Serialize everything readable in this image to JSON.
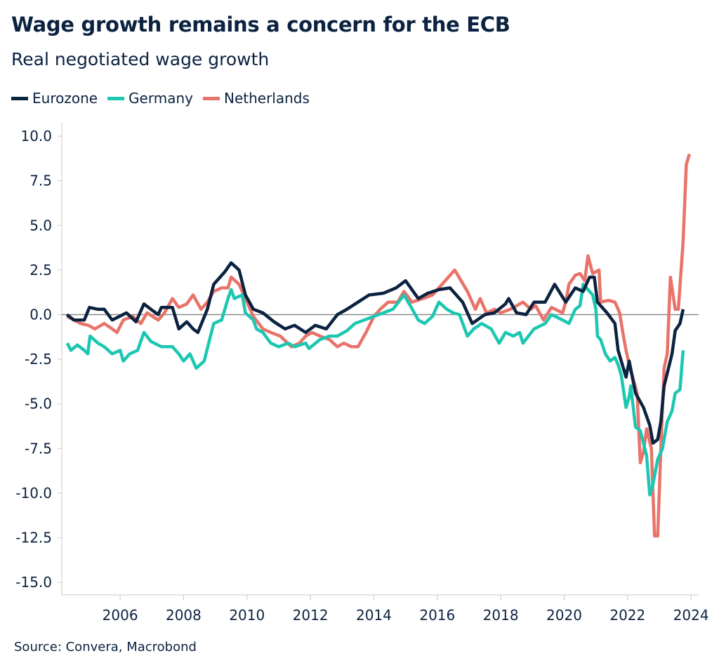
{
  "chart_data": {
    "type": "line",
    "title": "Wage growth remains a concern for the ECB",
    "subtitle": "Real negotiated wage growth",
    "source": "Source: Convera, Macrobond",
    "xlabel": "",
    "ylabel": "",
    "xlim": [
      2004.16,
      2024.24
    ],
    "ylim": [
      -15.7,
      10.75
    ],
    "x_ticks": [
      "2006",
      "2008",
      "2010",
      "2012",
      "2014",
      "2016",
      "2018",
      "2020",
      "2022",
      "2024"
    ],
    "y_ticks": [
      "10.0",
      "7.5",
      "5.0",
      "2.5",
      "0.0",
      "-2.5",
      "-5.0",
      "-7.5",
      "-10.0",
      "-12.5",
      "-15.0"
    ],
    "grid": false,
    "zero_line": true,
    "legend_position": "top-left",
    "series": [
      {
        "name": "Eurozone",
        "color": "#0b2240",
        "x": [
          2004.32,
          2004.54,
          2004.87,
          2005.03,
          2005.3,
          2005.5,
          2005.75,
          2006.2,
          2006.5,
          2006.75,
          2006.97,
          2007.2,
          2007.3,
          2007.65,
          2007.85,
          2008.1,
          2008.3,
          2008.45,
          2008.75,
          2008.95,
          2009.3,
          2009.5,
          2009.75,
          2009.95,
          2010.2,
          2010.5,
          2010.85,
          2011.2,
          2011.5,
          2011.85,
          2012.15,
          2012.5,
          2012.85,
          2013.15,
          2013.5,
          2013.85,
          2014.3,
          2014.7,
          2015.0,
          2015.4,
          2015.7,
          2016.05,
          2016.4,
          2016.8,
          2017.1,
          2017.5,
          2017.8,
          2018.15,
          2018.25,
          2018.5,
          2018.8,
          2019.05,
          2019.4,
          2019.7,
          2020.05,
          2020.35,
          2020.6,
          2020.8,
          2020.95,
          2021.05,
          2021.35,
          2021.6,
          2021.7,
          2021.9,
          2021.95,
          2022.05,
          2022.25,
          2022.5,
          2022.7,
          2022.8,
          2022.95,
          2023.05,
          2023.15,
          2023.4,
          2023.5,
          2023.65,
          2023.75
        ],
        "y": [
          0,
          -0.3,
          -0.3,
          0.4,
          0.3,
          0.3,
          -0.3,
          0.1,
          -0.4,
          0.6,
          0.3,
          0,
          0.4,
          0.4,
          -0.8,
          -0.4,
          -0.8,
          -1.0,
          0.3,
          1.7,
          2.4,
          2.9,
          2.5,
          1.1,
          0.3,
          0.1,
          -0.4,
          -0.8,
          -0.6,
          -1.0,
          -0.6,
          -0.8,
          0,
          0.3,
          0.7,
          1.1,
          1.2,
          1.5,
          1.9,
          0.9,
          1.2,
          1.4,
          1.5,
          0.7,
          -0.5,
          0,
          0.1,
          0.6,
          0.9,
          0.1,
          0,
          0.7,
          0.7,
          1.7,
          0.7,
          1.5,
          1.3,
          2.1,
          2.1,
          0.7,
          0.1,
          -0.5,
          -2.0,
          -3.2,
          -3.5,
          -2.6,
          -4.4,
          -5.2,
          -6.2,
          -7.2,
          -7.0,
          -6.0,
          -4.0,
          -2.2,
          -0.9,
          -0.5,
          0.3
        ]
      },
      {
        "name": "Germany",
        "color": "#1cc7b1",
        "x": [
          2004.33,
          2004.45,
          2004.65,
          2004.87,
          2004.98,
          2005.05,
          2005.3,
          2005.5,
          2005.75,
          2006.0,
          2006.1,
          2006.3,
          2006.55,
          2006.75,
          2006.97,
          2007.3,
          2007.65,
          2007.85,
          2008.0,
          2008.2,
          2008.4,
          2008.65,
          2008.85,
          2008.95,
          2009.2,
          2009.4,
          2009.5,
          2009.6,
          2009.85,
          2009.95,
          2010.2,
          2010.3,
          2010.5,
          2010.75,
          2011.0,
          2011.3,
          2011.5,
          2011.85,
          2011.95,
          2012.3,
          2012.6,
          2012.85,
          2013.15,
          2013.4,
          2013.7,
          2014.15,
          2014.6,
          2014.95,
          2015.15,
          2015.4,
          2015.6,
          2015.85,
          2016.05,
          2016.3,
          2016.5,
          2016.7,
          2016.95,
          2017.15,
          2017.4,
          2017.6,
          2017.7,
          2017.95,
          2018.15,
          2018.4,
          2018.6,
          2018.7,
          2019.05,
          2019.4,
          2019.6,
          2019.95,
          2020.15,
          2020.35,
          2020.5,
          2020.6,
          2020.75,
          2020.9,
          2021.0,
          2021.05,
          2021.15,
          2021.3,
          2021.45,
          2021.6,
          2021.7,
          2021.8,
          2021.95,
          2022.05,
          2022.1,
          2022.25,
          2022.4,
          2022.6,
          2022.7,
          2022.8,
          2022.95,
          2023.1,
          2023.25,
          2023.4,
          2023.5,
          2023.65,
          2023.75
        ],
        "y": [
          -1.6,
          -2.0,
          -1.7,
          -2.0,
          -2.2,
          -1.2,
          -1.6,
          -1.8,
          -2.2,
          -2.0,
          -2.6,
          -2.2,
          -2.0,
          -1.0,
          -1.5,
          -1.8,
          -1.8,
          -2.2,
          -2.6,
          -2.2,
          -3.0,
          -2.6,
          -1.2,
          -0.5,
          -0.3,
          0.9,
          1.4,
          0.9,
          1.1,
          0.1,
          -0.3,
          -0.8,
          -1.0,
          -1.6,
          -1.8,
          -1.6,
          -1.8,
          -1.6,
          -1.9,
          -1.4,
          -1.2,
          -1.2,
          -0.9,
          -0.5,
          -0.3,
          0,
          0.3,
          1.1,
          0.5,
          -0.3,
          -0.5,
          -0.1,
          0.7,
          0.3,
          0.1,
          0,
          -1.2,
          -0.8,
          -0.5,
          -0.7,
          -0.8,
          -1.6,
          -1.0,
          -1.2,
          -1.0,
          -1.6,
          -0.8,
          -0.5,
          0,
          -0.3,
          -0.5,
          0.3,
          0.5,
          1.7,
          1.4,
          1.1,
          0.3,
          -1.2,
          -1.4,
          -2.2,
          -2.6,
          -2.4,
          -2.8,
          -3.4,
          -5.2,
          -4.6,
          -4.0,
          -6.3,
          -6.5,
          -7.9,
          -10.1,
          -9.5,
          -8.1,
          -7.5,
          -6.0,
          -5.4,
          -4.4,
          -4.2,
          -2.0
        ]
      },
      {
        "name": "Netherlands",
        "color": "#e8736a",
        "x": [
          2004.33,
          2004.55,
          2004.75,
          2005.0,
          2005.2,
          2005.5,
          2005.75,
          2005.9,
          2006.1,
          2006.4,
          2006.65,
          2006.85,
          2007.2,
          2007.4,
          2007.65,
          2007.85,
          2008.1,
          2008.3,
          2008.55,
          2008.75,
          2008.95,
          2009.2,
          2009.4,
          2009.5,
          2009.75,
          2009.95,
          2010.2,
          2010.5,
          2010.75,
          2011.05,
          2011.4,
          2011.65,
          2011.85,
          2012.05,
          2012.3,
          2012.6,
          2012.85,
          2013.05,
          2013.3,
          2013.5,
          2013.75,
          2014.0,
          2014.2,
          2014.45,
          2014.75,
          2014.95,
          2015.2,
          2015.55,
          2015.85,
          2016.15,
          2016.55,
          2016.75,
          2016.95,
          2017.2,
          2017.35,
          2017.55,
          2017.8,
          2018.0,
          2018.3,
          2018.7,
          2018.95,
          2019.1,
          2019.35,
          2019.6,
          2019.95,
          2020.05,
          2020.15,
          2020.35,
          2020.5,
          2020.65,
          2020.75,
          2020.9,
          2021.1,
          2021.15,
          2021.4,
          2021.6,
          2021.75,
          2021.85,
          2021.95,
          2022.05,
          2022.3,
          2022.4,
          2022.5,
          2022.6,
          2022.75,
          2022.85,
          2022.95,
          2023.05,
          2023.15,
          2023.25,
          2023.35,
          2023.5,
          2023.6,
          2023.75,
          2023.85,
          2023.95
        ],
        "y": [
          -0.1,
          -0.3,
          -0.5,
          -0.6,
          -0.8,
          -0.5,
          -0.8,
          -1.0,
          -0.3,
          -0.1,
          -0.5,
          0.1,
          -0.3,
          0.1,
          0.9,
          0.4,
          0.6,
          1.1,
          0.3,
          0.7,
          1.3,
          1.5,
          1.5,
          2.1,
          1.7,
          0.9,
          -0.1,
          -0.8,
          -1.0,
          -1.2,
          -1.8,
          -1.6,
          -1.2,
          -1.0,
          -1.2,
          -1.4,
          -1.8,
          -1.6,
          -1.8,
          -1.8,
          -1.0,
          -0.1,
          0.3,
          0.7,
          0.7,
          1.3,
          0.7,
          0.9,
          1.1,
          1.7,
          2.5,
          1.9,
          1.3,
          0.3,
          0.9,
          0.1,
          0.3,
          0.1,
          0.3,
          0.7,
          0.3,
          0.5,
          -0.3,
          0.4,
          0.1,
          0.7,
          1.7,
          2.2,
          2.3,
          1.9,
          3.3,
          2.3,
          2.5,
          0.7,
          0.8,
          0.7,
          0.1,
          -1.0,
          -2.0,
          -2.8,
          -4.4,
          -8.3,
          -7.7,
          -6.4,
          -7.5,
          -12.4,
          -12.4,
          -7.5,
          -3.0,
          -2.2,
          2.1,
          0.3,
          0.3,
          4.1,
          8.4,
          9.0
        ]
      }
    ]
  }
}
